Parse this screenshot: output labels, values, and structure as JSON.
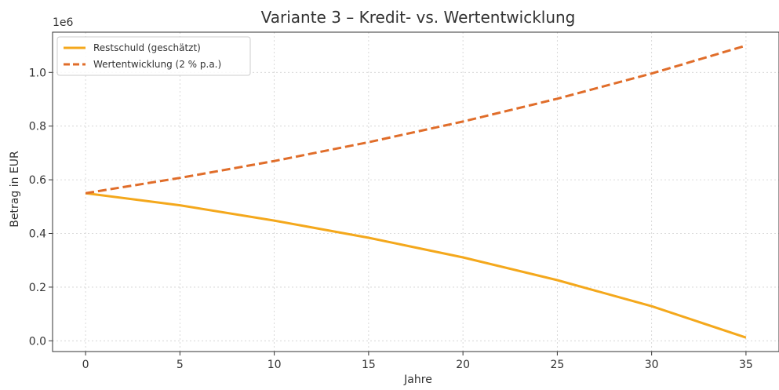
{
  "chart_data": {
    "type": "line",
    "title": "Variante 3 – Kredit- vs. Wertentwicklung",
    "xlabel": "Jahre",
    "ylabel": "Betrag in EUR",
    "y_offset_label": "1e6",
    "xlim": [
      -1.75,
      36.75
    ],
    "ylim": [
      -0.04,
      1.15
    ],
    "x_ticks": [
      0,
      5,
      10,
      15,
      20,
      25,
      30,
      35
    ],
    "x_tick_labels": [
      "0",
      "5",
      "10",
      "15",
      "20",
      "25",
      "30",
      "35"
    ],
    "y_ticks": [
      0.0,
      0.2,
      0.4,
      0.6,
      0.8,
      1.0
    ],
    "y_tick_labels": [
      "0.0",
      "0.2",
      "0.4",
      "0.6",
      "0.8",
      "1.0"
    ],
    "grid": true,
    "legend_position": "top-left",
    "series": [
      {
        "name": "Restschuld (geschätzt)",
        "color": "#f4a81c",
        "style": "solid",
        "x": [
          0,
          5,
          10,
          15,
          20,
          25,
          30,
          35
        ],
        "y": [
          0.55,
          0.505,
          0.448,
          0.384,
          0.311,
          0.226,
          0.129,
          0.012
        ]
      },
      {
        "name": "Wertentwicklung (2 % p.a.)",
        "color": "#e06d2a",
        "style": "dashed",
        "x": [
          0,
          5,
          10,
          15,
          20,
          25,
          30,
          35
        ],
        "y": [
          0.55,
          0.607,
          0.67,
          0.74,
          0.817,
          0.902,
          0.996,
          1.1
        ]
      }
    ]
  }
}
